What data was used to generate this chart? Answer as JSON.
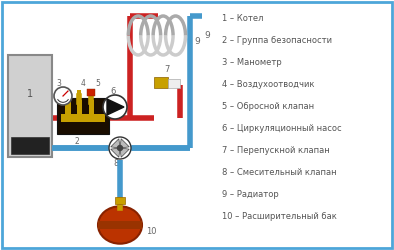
{
  "legend_items": [
    "1 – Котел",
    "2 – Группа безопасности",
    "3 – Манометр",
    "4 – Воздухоотводчик",
    "5 – Обросной клапан",
    "6 – Циркуляционный насос",
    "7 – Перепускной клапан",
    "8 – Смесительный клапан",
    "9 – Радиатор",
    "10 – Расширительный бак"
  ],
  "bg_color": "#ffffff",
  "border_color": "#4da6d9",
  "pipe_hot_color": "#cc2222",
  "pipe_cold_color": "#4499cc",
  "boiler_color": "#d0d0d0",
  "boiler_border": "#888888",
  "expansion_tank_color": "#bb3300",
  "sg_block_color": "#1a0d00",
  "brass_color": "#c8a000",
  "label_color": "#666666"
}
